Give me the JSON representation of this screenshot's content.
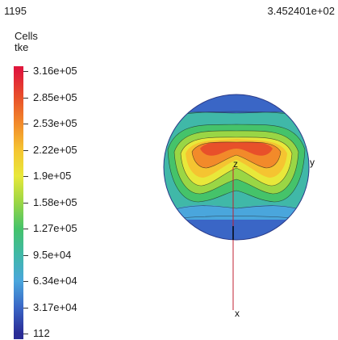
{
  "frame_number": "1195",
  "time_value": "3.452401e+02",
  "colorbar": {
    "title_line1": "Cells",
    "title_line2": "tke",
    "labels": [
      "3.16e+05",
      "2.85e+05",
      "2.53e+05",
      "2.22e+05",
      "1.9e+05",
      "1.58e+05",
      "1.27e+05",
      "9.5e+04",
      "6.34e+04",
      "3.17e+04",
      "112"
    ],
    "colors": [
      "#e0183c",
      "#e8502a",
      "#f28a2a",
      "#f5c431",
      "#e8e83a",
      "#9ad645",
      "#45c36a",
      "#40b8a8",
      "#4aa6dc",
      "#3a66c6",
      "#2a2c96"
    ]
  },
  "axes": {
    "z_label": "z",
    "y_label": "y",
    "x_label": "x"
  }
}
